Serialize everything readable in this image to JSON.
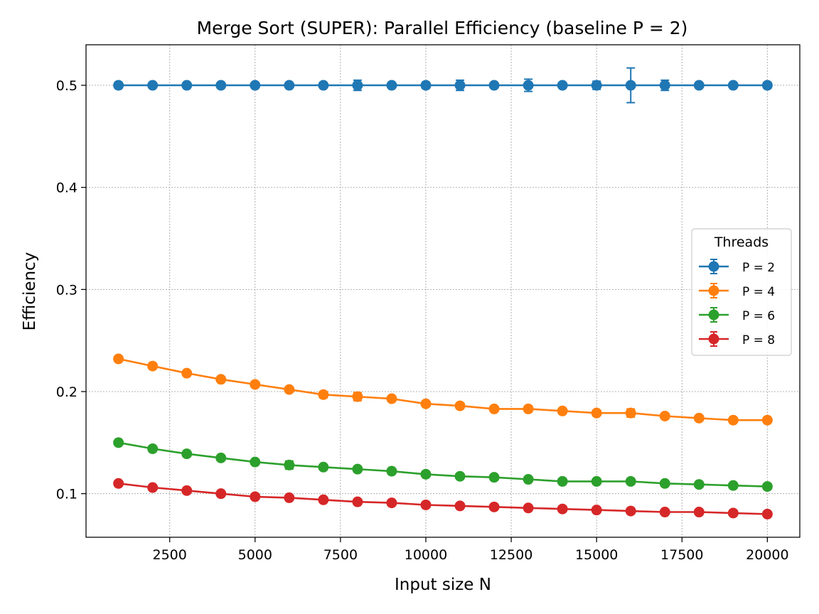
{
  "chart_data": {
    "type": "line",
    "title": "Merge Sort (SUPER): Parallel Efficiency (baseline P = 2)",
    "xlabel": "Input size N",
    "ylabel": "Efficiency",
    "xlim": [
      50,
      20950
    ],
    "ylim": [
      0.0573,
      0.5397
    ],
    "xticks": [
      2500,
      5000,
      7500,
      10000,
      12500,
      15000,
      17500,
      20000
    ],
    "xtick_labels": [
      "2500",
      "5000",
      "7500",
      "10000",
      "12500",
      "15000",
      "17500",
      "20000"
    ],
    "yticks": [
      0.1,
      0.2,
      0.3,
      0.4,
      0.5
    ],
    "ytick_labels": [
      "0.1",
      "0.2",
      "0.3",
      "0.4",
      "0.5"
    ],
    "grid": true,
    "legend": {
      "title": "Threads",
      "placement": "center-right"
    },
    "x": [
      1000,
      2000,
      3000,
      4000,
      5000,
      6000,
      7000,
      8000,
      9000,
      10000,
      11000,
      12000,
      13000,
      14000,
      15000,
      16000,
      17000,
      18000,
      19000,
      20000
    ],
    "series": [
      {
        "name": "P = 2",
        "color": "#1f77b4",
        "values": [
          0.5,
          0.5,
          0.5,
          0.5,
          0.5,
          0.5,
          0.5,
          0.5,
          0.5,
          0.5,
          0.5,
          0.5,
          0.5,
          0.5,
          0.5,
          0.5,
          0.5,
          0.5,
          0.5,
          0.5
        ],
        "errors": [
          0.003,
          0.002,
          0.002,
          0.002,
          0.002,
          0.002,
          0.002,
          0.005,
          0.002,
          0.003,
          0.005,
          0.002,
          0.006,
          0.002,
          0.004,
          0.017,
          0.005,
          0.002,
          0.002,
          0.003
        ]
      },
      {
        "name": "P = 4",
        "color": "#ff7f0e",
        "values": [
          0.232,
          0.225,
          0.218,
          0.212,
          0.207,
          0.202,
          0.197,
          0.195,
          0.193,
          0.188,
          0.186,
          0.183,
          0.183,
          0.181,
          0.179,
          0.179,
          0.176,
          0.174,
          0.172,
          0.172
        ],
        "errors": [
          0.002,
          0.002,
          0.002,
          0.002,
          0.002,
          0.002,
          0.003,
          0.004,
          0.002,
          0.002,
          0.002,
          0.002,
          0.003,
          0.002,
          0.002,
          0.004,
          0.002,
          0.002,
          0.002,
          0.002
        ]
      },
      {
        "name": "P = 6",
        "color": "#2ca02c",
        "values": [
          0.15,
          0.144,
          0.139,
          0.135,
          0.131,
          0.128,
          0.126,
          0.124,
          0.122,
          0.119,
          0.117,
          0.116,
          0.114,
          0.112,
          0.112,
          0.112,
          0.11,
          0.109,
          0.108,
          0.107
        ],
        "errors": [
          0.002,
          0.002,
          0.002,
          0.002,
          0.002,
          0.004,
          0.002,
          0.002,
          0.002,
          0.002,
          0.002,
          0.002,
          0.002,
          0.002,
          0.002,
          0.002,
          0.002,
          0.002,
          0.002,
          0.002
        ]
      },
      {
        "name": "P = 8",
        "color": "#d62728",
        "values": [
          0.11,
          0.106,
          0.103,
          0.1,
          0.097,
          0.096,
          0.094,
          0.092,
          0.091,
          0.089,
          0.088,
          0.087,
          0.086,
          0.085,
          0.084,
          0.083,
          0.082,
          0.082,
          0.081,
          0.08
        ],
        "errors": [
          0.002,
          0.002,
          0.002,
          0.002,
          0.002,
          0.002,
          0.002,
          0.002,
          0.002,
          0.002,
          0.002,
          0.002,
          0.002,
          0.002,
          0.002,
          0.002,
          0.002,
          0.002,
          0.002,
          0.002
        ]
      }
    ]
  }
}
